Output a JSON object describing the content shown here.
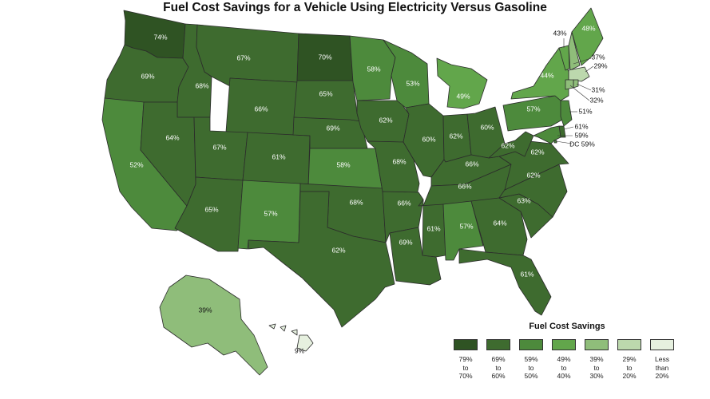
{
  "title": "Fuel Cost Savings for a Vehicle Using Electricity Versus Gasoline",
  "legend": {
    "title": "Fuel Cost Savings",
    "items": [
      {
        "lines": [
          "79%",
          "to",
          "70%"
        ],
        "color": "#2f5323"
      },
      {
        "lines": [
          "69%",
          "to",
          "60%"
        ],
        "color": "#3e6b2f"
      },
      {
        "lines": [
          "59%",
          "to",
          "50%"
        ],
        "color": "#4d8a3c"
      },
      {
        "lines": [
          "49%",
          "to",
          "40%"
        ],
        "color": "#62a64b"
      },
      {
        "lines": [
          "39%",
          "to",
          "30%"
        ],
        "color": "#8fbd7a"
      },
      {
        "lines": [
          "29%",
          "to",
          "20%"
        ],
        "color": "#bcd8ad"
      },
      {
        "lines": [
          "Less",
          "than",
          "20%"
        ],
        "color": "#e6f0df"
      }
    ]
  },
  "states": [
    {
      "code": "WA",
      "value": 74,
      "label": "74%"
    },
    {
      "code": "OR",
      "value": 69,
      "label": "69%"
    },
    {
      "code": "CA",
      "value": 52,
      "label": "52%"
    },
    {
      "code": "ID",
      "value": 68,
      "label": "68%"
    },
    {
      "code": "NV",
      "value": 64,
      "label": "64%"
    },
    {
      "code": "MT",
      "value": 67,
      "label": "67%"
    },
    {
      "code": "WY",
      "value": 66,
      "label": "66%"
    },
    {
      "code": "UT",
      "value": 67,
      "label": "67%"
    },
    {
      "code": "AZ",
      "value": 65,
      "label": "65%"
    },
    {
      "code": "CO",
      "value": 61,
      "label": "61%"
    },
    {
      "code": "NM",
      "value": 57,
      "label": "57%"
    },
    {
      "code": "ND",
      "value": 70,
      "label": "70%"
    },
    {
      "code": "SD",
      "value": 65,
      "label": "65%"
    },
    {
      "code": "NE",
      "value": 69,
      "label": "69%"
    },
    {
      "code": "KS",
      "value": 58,
      "label": "58%"
    },
    {
      "code": "OK",
      "value": 68,
      "label": "68%"
    },
    {
      "code": "TX",
      "value": 62,
      "label": "62%"
    },
    {
      "code": "MN",
      "value": 58,
      "label": "58%"
    },
    {
      "code": "IA",
      "value": 62,
      "label": "62%"
    },
    {
      "code": "MO",
      "value": 68,
      "label": "68%"
    },
    {
      "code": "AR",
      "value": 66,
      "label": "66%"
    },
    {
      "code": "LA",
      "value": 69,
      "label": "69%"
    },
    {
      "code": "WI",
      "value": 53,
      "label": "53%"
    },
    {
      "code": "IL",
      "value": 60,
      "label": "60%"
    },
    {
      "code": "MI",
      "value": 49,
      "label": "49%"
    },
    {
      "code": "IN",
      "value": 62,
      "label": "62%"
    },
    {
      "code": "OH",
      "value": 60,
      "label": "60%"
    },
    {
      "code": "KY",
      "value": 66,
      "label": "66%"
    },
    {
      "code": "TN",
      "value": 66,
      "label": "66%"
    },
    {
      "code": "MS",
      "value": 61,
      "label": "61%"
    },
    {
      "code": "AL",
      "value": 57,
      "label": "57%"
    },
    {
      "code": "GA",
      "value": 64,
      "label": "64%"
    },
    {
      "code": "FL",
      "value": 61,
      "label": "61%"
    },
    {
      "code": "SC",
      "value": 63,
      "label": "63%"
    },
    {
      "code": "NC",
      "value": 62,
      "label": "62%"
    },
    {
      "code": "VA",
      "value": 62,
      "label": "62%"
    },
    {
      "code": "WV",
      "value": 62,
      "label": "62%"
    },
    {
      "code": "PA",
      "value": 57,
      "label": "57%"
    },
    {
      "code": "NY",
      "value": 44,
      "label": "44%"
    },
    {
      "code": "VT",
      "value": 43,
      "label": "43%"
    },
    {
      "code": "NH",
      "value": 37,
      "label": "37%"
    },
    {
      "code": "ME",
      "value": 48,
      "label": "48%"
    },
    {
      "code": "MA",
      "value": 29,
      "label": "29%"
    },
    {
      "code": "RI",
      "value": 31,
      "label": "31%"
    },
    {
      "code": "CT",
      "value": 32,
      "label": "32%"
    },
    {
      "code": "NJ",
      "value": 51,
      "label": "51%"
    },
    {
      "code": "DE",
      "value": 61,
      "label": "61%"
    },
    {
      "code": "MD",
      "value": 59,
      "label": "59%"
    },
    {
      "code": "DC",
      "value": 59,
      "label": "DC 59%"
    },
    {
      "code": "AK",
      "value": 39,
      "label": "39%"
    },
    {
      "code": "HI",
      "value": 9,
      "label": "9%"
    }
  ]
}
